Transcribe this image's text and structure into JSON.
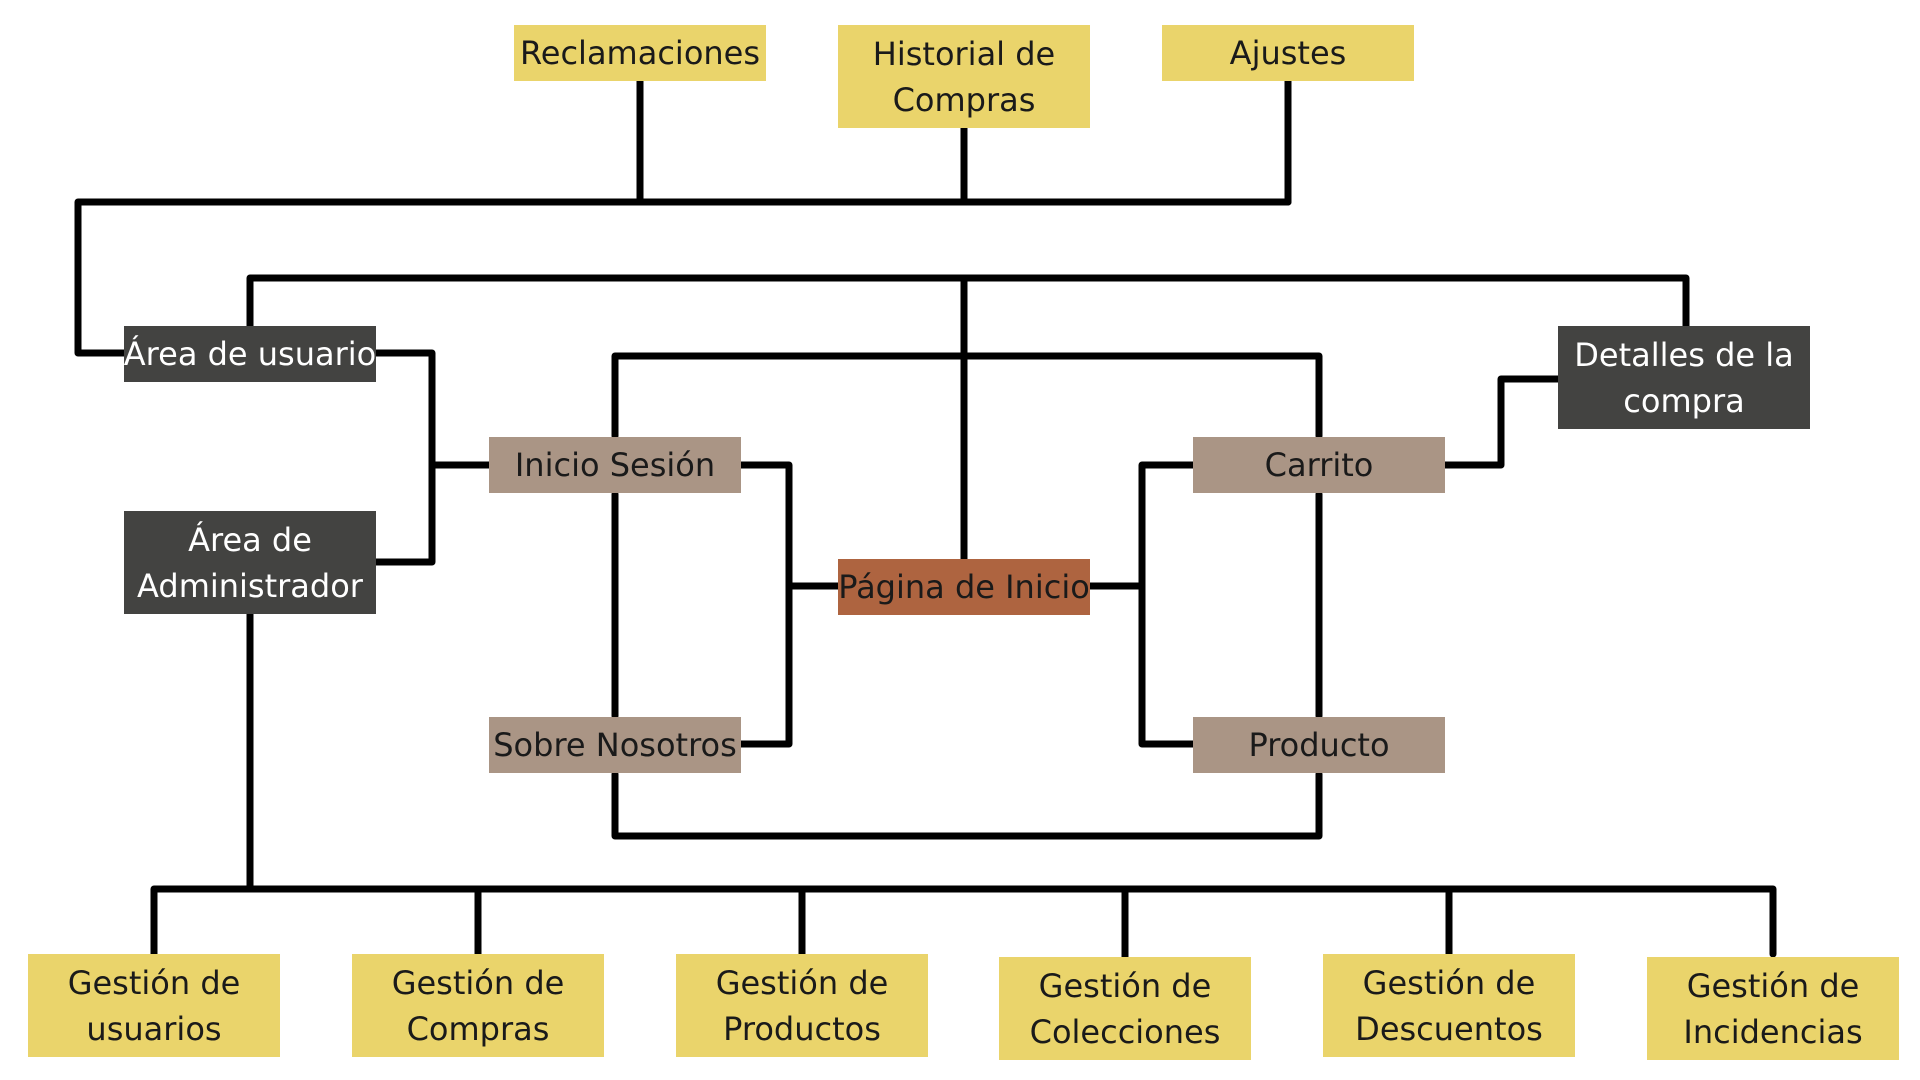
{
  "colors": {
    "yellow": "#ead46b",
    "dark": "#434341",
    "taupe": "#aa9585",
    "orange": "#ae6440",
    "line": "#000000"
  },
  "nodes": {
    "reclamaciones": "Reclamaciones",
    "historial_compras": "Historial de\nCompras",
    "ajustes": "Ajustes",
    "area_usuario": "Área de usuario",
    "area_administrador": "Área de\nAdministrador",
    "detalles_compra": "Detalles de la\ncompra",
    "inicio_sesion": "Inicio Sesión",
    "sobre_nosotros": "Sobre Nosotros",
    "pagina_inicio": "Página de Inicio",
    "carrito": "Carrito",
    "producto": "Producto",
    "gestion_usuarios": "Gestión de\nusuarios",
    "gestion_compras": "Gestión de\nCompras",
    "gestion_productos": "Gestión de\nProductos",
    "gestion_colecciones": "Gestión de\nColecciones",
    "gestion_descuentos": "Gestión de\nDescuentos",
    "gestion_incidencias": "Gestión de\nIncidencias"
  }
}
